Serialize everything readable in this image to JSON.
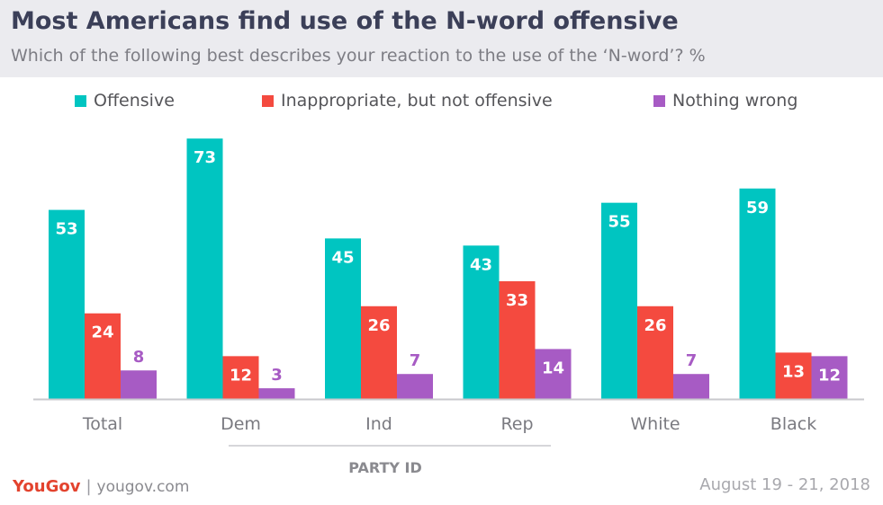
{
  "header": {
    "title": "Most Americans find use of the N-word offensive",
    "subtitle": "Which of the following best describes your reaction to the use of the ‘N-word’? %"
  },
  "footer": {
    "brand": "YouGov",
    "url": "yougov.com",
    "date": "August 19 - 21, 2018"
  },
  "chart_data": {
    "type": "bar",
    "categories": [
      "Total",
      "Dem",
      "Ind",
      "Rep",
      "White",
      "Black"
    ],
    "series": [
      {
        "name": "Offensive",
        "values": [
          53,
          73,
          45,
          43,
          55,
          59
        ],
        "color": "#00c5c1",
        "label_color": "#ffffff"
      },
      {
        "name": "Inappropriate, but not offensive",
        "values": [
          24,
          12,
          26,
          33,
          26,
          13
        ],
        "color": "#f44a3f",
        "label_color": "#ffffff"
      },
      {
        "name": "Nothing wrong",
        "values": [
          8,
          3,
          7,
          14,
          7,
          12
        ],
        "color": "#a75bc4",
        "label_color": "#a75bc4"
      }
    ],
    "group_label": "PARTY ID",
    "grid": false,
    "legend_position": "top"
  }
}
